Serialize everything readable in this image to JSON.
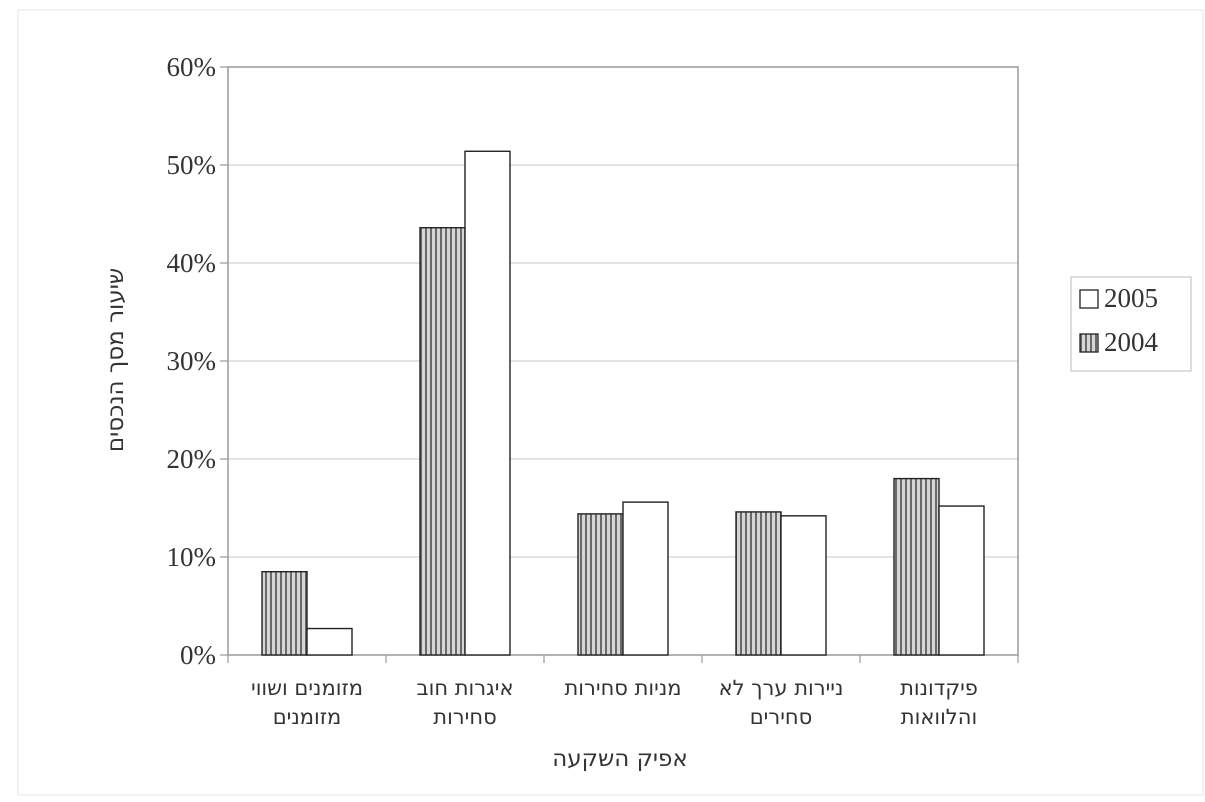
{
  "chart_data": {
    "type": "bar",
    "xlabel": "אפיק השקעה",
    "ylabel": "שיעור מסך הנכסים",
    "ylim": [
      0,
      60
    ],
    "yticks": [
      "0%",
      "10%",
      "20%",
      "30%",
      "40%",
      "50%",
      "60%"
    ],
    "grid": true,
    "legend_position": "right",
    "categories": [
      [
        "מזומנים ושווי",
        "מזומנים"
      ],
      [
        "איגרות חוב",
        "סחירות"
      ],
      [
        "מניות סחירות"
      ],
      [
        "ניירות ערך לא",
        "סחירים"
      ],
      [
        "פיקדונות",
        "והלוואות"
      ]
    ],
    "series": [
      {
        "name": "2004",
        "values": [
          8.5,
          43.6,
          14.4,
          14.6,
          18.0
        ],
        "pattern": "vertical-hatch"
      },
      {
        "name": "2005",
        "values": [
          2.7,
          51.4,
          15.6,
          14.2,
          15.2
        ],
        "pattern": "white"
      }
    ],
    "legend_order": [
      "2005",
      "2004"
    ]
  },
  "colors": {
    "frame": "#9a9a9a",
    "grid": "#c8c8c8",
    "bar_outline": "#222222",
    "hatch_light": "#d6d6d6",
    "hatch_dark": "#6a6a6a"
  }
}
